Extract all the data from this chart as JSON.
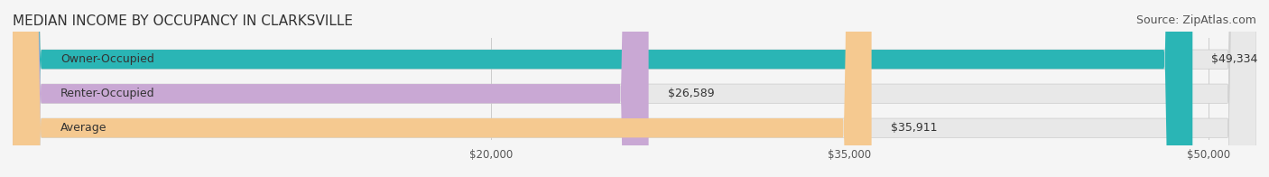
{
  "title": "MEDIAN INCOME BY OCCUPANCY IN CLARKSVILLE",
  "source": "Source: ZipAtlas.com",
  "categories": [
    "Owner-Occupied",
    "Renter-Occupied",
    "Average"
  ],
  "values": [
    49334,
    26589,
    35911
  ],
  "bar_colors": [
    "#2ab5b5",
    "#c9a8d4",
    "#f5c990"
  ],
  "bar_labels": [
    "$49,334",
    "$26,589",
    "$35,911"
  ],
  "xlim": [
    0,
    52000
  ],
  "xticks": [
    20000,
    35000,
    50000
  ],
  "xticklabels": [
    "$20,000",
    "$35,000",
    "$50,000"
  ],
  "title_fontsize": 11,
  "source_fontsize": 9,
  "bar_label_fontsize": 9,
  "category_fontsize": 9,
  "background_color": "#f5f5f5",
  "bar_bg_color": "#e8e8e8",
  "bar_height": 0.55
}
